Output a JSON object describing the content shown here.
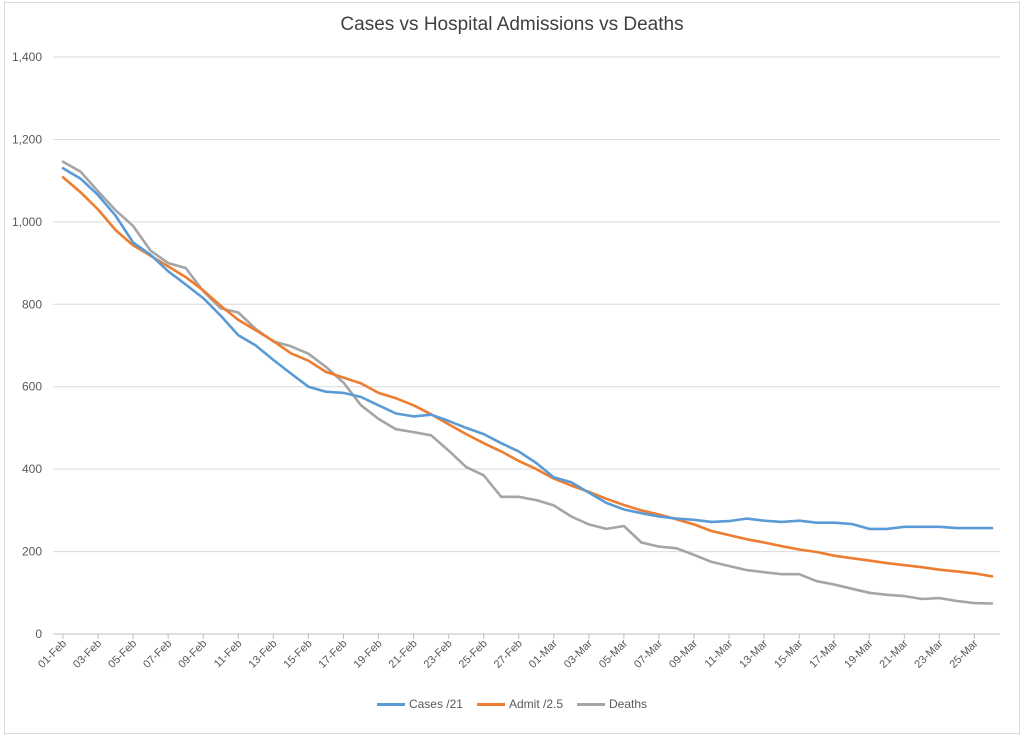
{
  "chart_data": {
    "type": "line",
    "title": "Cases vs Hospital Admissions vs Deaths",
    "xlabel": "",
    "ylabel": "",
    "ylim": [
      0,
      1400
    ],
    "yticks": [
      "0",
      "200",
      "400",
      "600",
      "800",
      "1,000",
      "1,200",
      "1,400"
    ],
    "ytick_values": [
      0,
      200,
      400,
      600,
      800,
      1000,
      1200,
      1400
    ],
    "grid": true,
    "legend_position": "bottom",
    "x": [
      "01-Feb",
      "02-Feb",
      "03-Feb",
      "04-Feb",
      "05-Feb",
      "06-Feb",
      "07-Feb",
      "08-Feb",
      "09-Feb",
      "10-Feb",
      "11-Feb",
      "12-Feb",
      "13-Feb",
      "14-Feb",
      "15-Feb",
      "16-Feb",
      "17-Feb",
      "18-Feb",
      "19-Feb",
      "20-Feb",
      "21-Feb",
      "22-Feb",
      "23-Feb",
      "24-Feb",
      "25-Feb",
      "26-Feb",
      "27-Feb",
      "28-Feb",
      "01-Mar",
      "02-Mar",
      "03-Mar",
      "04-Mar",
      "05-Mar",
      "06-Mar",
      "07-Mar",
      "08-Mar",
      "09-Mar",
      "10-Mar",
      "11-Mar",
      "12-Mar",
      "13-Mar",
      "14-Mar",
      "15-Mar",
      "16-Mar",
      "17-Mar",
      "18-Mar",
      "19-Mar",
      "20-Mar",
      "21-Mar",
      "22-Mar",
      "23-Mar",
      "24-Mar",
      "25-Mar",
      "26-Mar"
    ],
    "x_tick_labels": [
      "01-Feb",
      "03-Feb",
      "05-Feb",
      "07-Feb",
      "09-Feb",
      "11-Feb",
      "13-Feb",
      "15-Feb",
      "17-Feb",
      "19-Feb",
      "21-Feb",
      "23-Feb",
      "25-Feb",
      "27-Feb",
      "01-Mar",
      "03-Mar",
      "05-Mar",
      "07-Mar",
      "09-Mar",
      "11-Mar",
      "13-Mar",
      "15-Mar",
      "17-Mar",
      "19-Mar",
      "21-Mar",
      "23-Mar",
      "25-Mar"
    ],
    "series": [
      {
        "name": "Cases /21",
        "color": "#5B9BD5",
        "values": [
          1130,
          1105,
          1065,
          1015,
          950,
          920,
          880,
          848,
          815,
          772,
          725,
          700,
          665,
          632,
          600,
          588,
          585,
          575,
          555,
          535,
          528,
          532,
          517,
          500,
          485,
          463,
          443,
          415,
          380,
          368,
          343,
          318,
          302,
          293,
          285,
          280,
          277,
          272,
          274,
          280,
          275,
          272,
          275,
          270,
          270,
          267,
          255,
          255,
          260,
          260,
          260,
          257,
          257,
          257
        ]
      },
      {
        "name": "Admit /2.5",
        "color": "#ED7D31",
        "values": [
          1108,
          1072,
          1030,
          980,
          943,
          918,
          892,
          866,
          834,
          796,
          762,
          737,
          711,
          681,
          663,
          636,
          622,
          608,
          585,
          572,
          555,
          533,
          509,
          485,
          463,
          443,
          420,
          400,
          377,
          360,
          345,
          328,
          313,
          300,
          290,
          278,
          266,
          250,
          240,
          230,
          222,
          213,
          205,
          199,
          190,
          184,
          178,
          172,
          167,
          162,
          156,
          152,
          147,
          140
        ]
      },
      {
        "name": "Deaths",
        "color": "#A5A5A5",
        "values": [
          1146,
          1122,
          1074,
          1028,
          990,
          930,
          900,
          888,
          832,
          790,
          780,
          740,
          710,
          698,
          680,
          648,
          610,
          555,
          522,
          497,
          490,
          482,
          445,
          405,
          385,
          333,
          333,
          325,
          312,
          285,
          266,
          255,
          262,
          222,
          212,
          208,
          192,
          175,
          165,
          155,
          150,
          145,
          145,
          128,
          120,
          110,
          100,
          95,
          92,
          85,
          87,
          80,
          75,
          74
        ]
      }
    ]
  }
}
